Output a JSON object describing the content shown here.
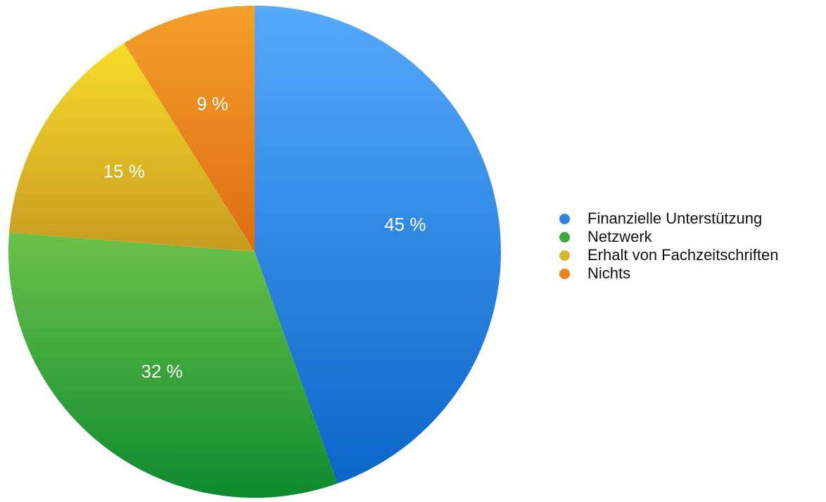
{
  "chart_data": {
    "type": "pie",
    "categories": [
      "Finanzielle Unterstützung",
      "Netzwerk",
      "Erhalt von Fachzeitschriften",
      "Nichts"
    ],
    "values": [
      45,
      32,
      15,
      9
    ],
    "labels": [
      "45 %",
      "32 %",
      "15 %",
      "9 %"
    ],
    "colors": [
      "#2f86e3",
      "#3ea83a",
      "#d9b72a",
      "#e8861e"
    ],
    "legend_position": "right",
    "start_angle": "top",
    "direction": "clockwise"
  }
}
